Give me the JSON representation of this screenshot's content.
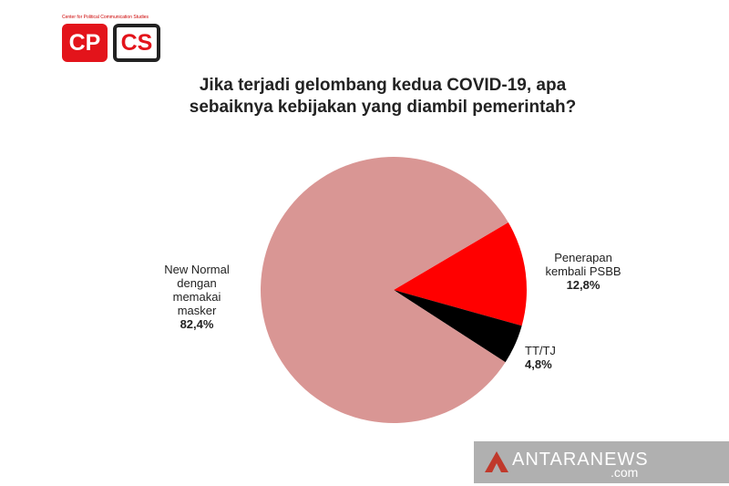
{
  "logo": {
    "caption": "Center for Political Communication Studies",
    "left": "CP",
    "right": "CS"
  },
  "chart_data": {
    "type": "pie",
    "title": "Jika terjadi gelombang kedua COVID-19, apa sebaiknya kebijakan yang diambil pemerintah?",
    "categories": [
      "Penerapan kembali PSBB",
      "TT/TJ",
      "New Normal dengan memakai masker"
    ],
    "values": [
      12.8,
      4.8,
      82.4
    ],
    "value_labels": [
      "12,8%",
      "4,8%",
      "82,4%"
    ],
    "colors": [
      "#ff0000",
      "#000000",
      "#d99694"
    ]
  },
  "watermark": {
    "brand": "ANTARANEWS",
    "suffix": ".com"
  }
}
